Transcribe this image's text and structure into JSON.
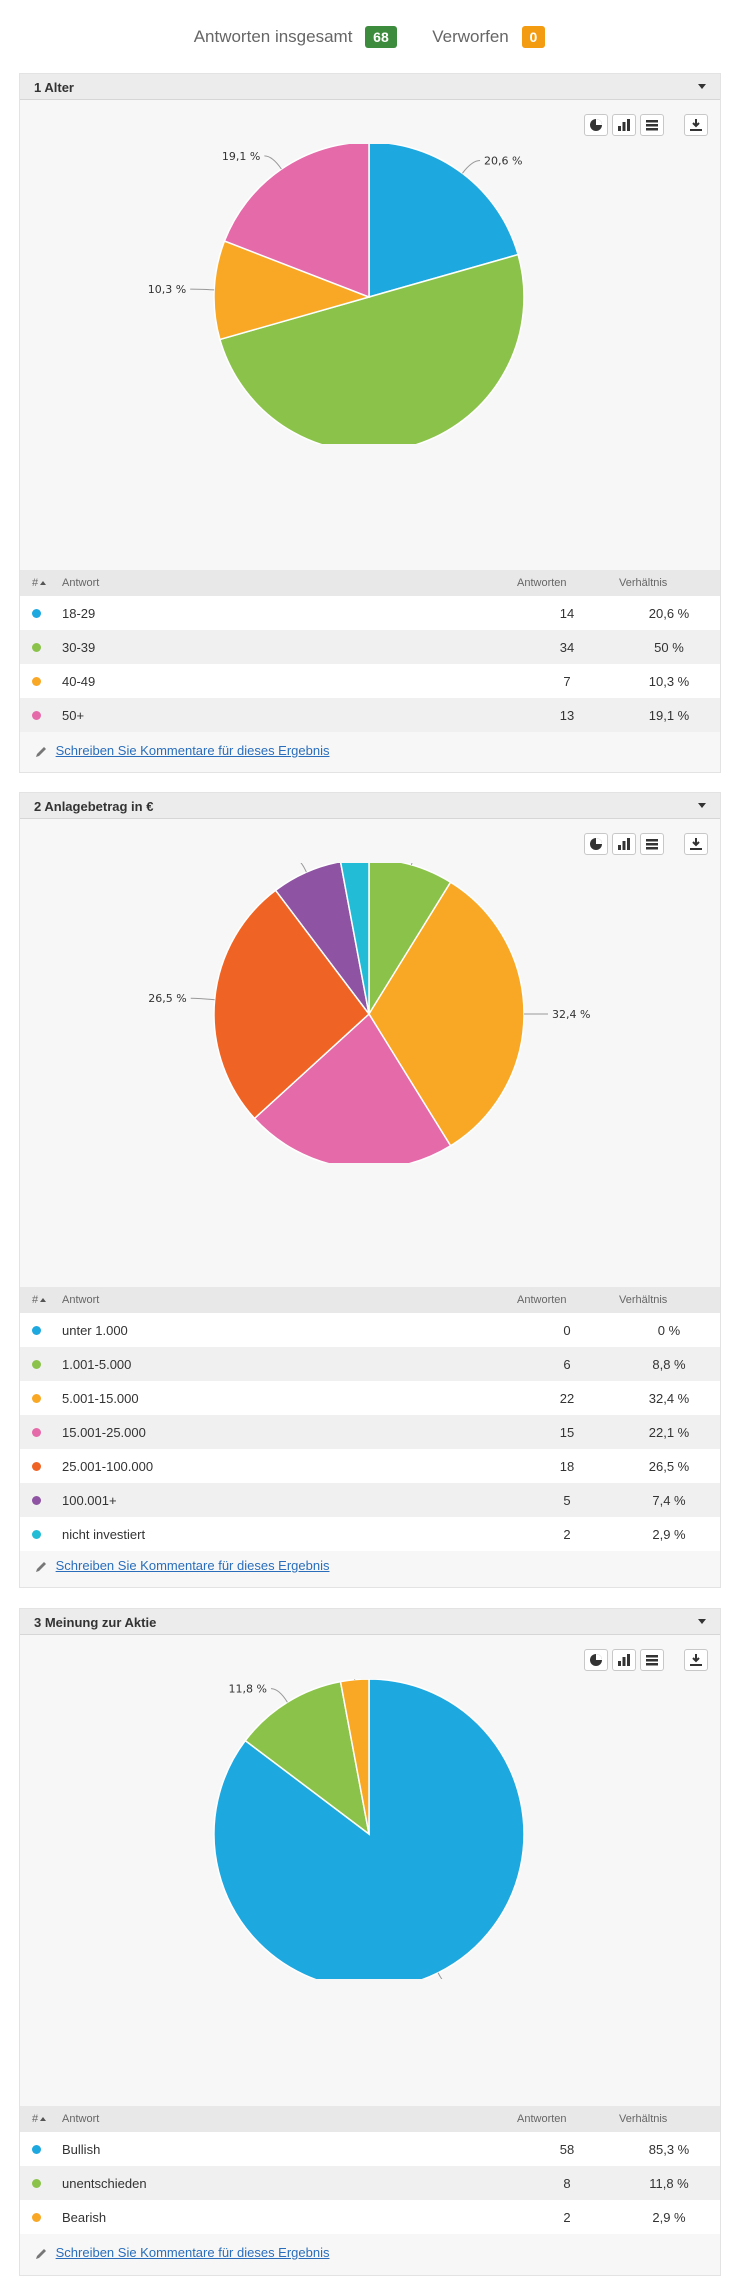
{
  "summary": {
    "total_label": "Antworten insgesamt",
    "total_value": "68",
    "discarded_label": "Verworfen",
    "discarded_value": "0"
  },
  "table_headers": {
    "num": "#",
    "answer": "Antwort",
    "count": "Antworten",
    "ratio": "Verhältnis"
  },
  "comment_link": "Schreiben Sie Kommentare für dieses Ergebnis",
  "colors": {
    "blue": "#1ea8e0",
    "green": "#8bc34a",
    "orange": "#f9a825",
    "pink": "#e56aa9",
    "red_orange": "#ef6424",
    "purple": "#8e54a3",
    "cyan": "#23bcd6"
  },
  "questions": [
    {
      "title": "1 Alter",
      "rows": [
        {
          "label": "18-29",
          "count": "14",
          "ratio": "20,6 %",
          "color": "#1ea8e0"
        },
        {
          "label": "30-39",
          "count": "34",
          "ratio": "50 %",
          "color": "#8bc34a"
        },
        {
          "label": "40-49",
          "count": "7",
          "ratio": "10,3 %",
          "color": "#f9a825"
        },
        {
          "label": "50+",
          "count": "13",
          "ratio": "19,1 %",
          "color": "#e56aa9"
        }
      ]
    },
    {
      "title": "2 Anlagebetrag in €",
      "rows": [
        {
          "label": "unter 1.000",
          "count": "0",
          "ratio": "0 %",
          "color": "#1ea8e0"
        },
        {
          "label": "1.001-5.000",
          "count": "6",
          "ratio": "8,8 %",
          "color": "#8bc34a"
        },
        {
          "label": "5.001-15.000",
          "count": "22",
          "ratio": "32,4 %",
          "color": "#f9a825"
        },
        {
          "label": "15.001-25.000",
          "count": "15",
          "ratio": "22,1 %",
          "color": "#e56aa9"
        },
        {
          "label": "25.001-100.000",
          "count": "18",
          "ratio": "26,5 %",
          "color": "#ef6424"
        },
        {
          "label": "100.001+",
          "count": "5",
          "ratio": "7,4 %",
          "color": "#8e54a3"
        },
        {
          "label": "nicht investiert",
          "count": "2",
          "ratio": "2,9 %",
          "color": "#23bcd6"
        }
      ]
    },
    {
      "title": "3 Meinung zur Aktie",
      "rows": [
        {
          "label": "Bullish",
          "count": "58",
          "ratio": "85,3 %",
          "color": "#1ea8e0"
        },
        {
          "label": "unentschieden",
          "count": "8",
          "ratio": "11,8 %",
          "color": "#8bc34a"
        },
        {
          "label": "Bearish",
          "count": "2",
          "ratio": "2,9 %",
          "color": "#f9a825"
        }
      ]
    }
  ],
  "chart_data": [
    {
      "type": "pie",
      "title": "1 Alter",
      "categories": [
        "18-29",
        "30-39",
        "40-49",
        "50+"
      ],
      "values": [
        14,
        34,
        7,
        13
      ],
      "labels": [
        "20,6 %",
        "50 %",
        "10,3 %",
        "19,1 %"
      ],
      "colors": [
        "#1ea8e0",
        "#8bc34a",
        "#f9a825",
        "#e56aa9"
      ]
    },
    {
      "type": "pie",
      "title": "2 Anlagebetrag in €",
      "categories": [
        "unter 1.000",
        "1.001-5.000",
        "5.001-15.000",
        "15.001-25.000",
        "25.001-100.000",
        "100.001+",
        "nicht investiert"
      ],
      "values": [
        0,
        6,
        22,
        15,
        18,
        5,
        2
      ],
      "labels": [
        "0 %",
        "8,8 %",
        "32,4 %",
        "22,1 %",
        "26,5 %",
        "7,4 %",
        "2,9 %"
      ],
      "colors": [
        "#1ea8e0",
        "#8bc34a",
        "#f9a825",
        "#e56aa9",
        "#ef6424",
        "#8e54a3",
        "#23bcd6"
      ]
    },
    {
      "type": "pie",
      "title": "3 Meinung zur Aktie",
      "categories": [
        "Bullish",
        "unentschieden",
        "Bearish"
      ],
      "values": [
        58,
        8,
        2
      ],
      "labels": [
        "85,3 %",
        "11,8 %",
        "2,9 %"
      ],
      "colors": [
        "#1ea8e0",
        "#8bc34a",
        "#f9a825"
      ]
    }
  ]
}
